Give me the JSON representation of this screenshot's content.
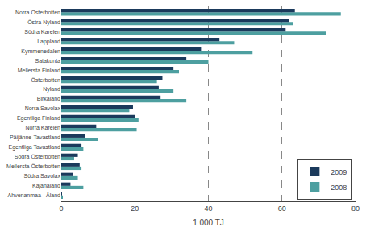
{
  "chart_data": {
    "type": "bar",
    "orientation": "horizontal",
    "categories": [
      "Ahvenanmaa - Åland",
      "Kajanaland",
      "Södra Savolax",
      "Mellersta Österbotten",
      "Södra Österbotten",
      "Egentliga Tavastland",
      "Päijänne-Tavastland",
      "Norra Karelen",
      "Egentliga Finland",
      "Norra Savolax",
      "Birkaland",
      "Nyland",
      "Österbotten",
      "Mellersta Finland",
      "Satakunta",
      "Kymmenedalen",
      "Lappland",
      "Södra Karelen",
      "Östra Nyland",
      "Norra Österbotten"
    ],
    "series": [
      {
        "name": "2009",
        "color": "#1b3a5c",
        "values": [
          0.2,
          2.5,
          3.2,
          5.0,
          4.5,
          5.5,
          6.5,
          9.5,
          20.0,
          19.5,
          27.0,
          26.5,
          27.5,
          30.5,
          34.0,
          38.0,
          43.0,
          61.0,
          62.0,
          63.5
        ]
      },
      {
        "name": "2008",
        "color": "#4d9fa0",
        "values": [
          0.4,
          6.0,
          4.5,
          5.5,
          3.5,
          6.0,
          10.0,
          20.5,
          21.0,
          18.5,
          34.0,
          30.5,
          26.0,
          32.0,
          40.0,
          52.0,
          47.0,
          72.0,
          63.0,
          76.0
        ]
      }
    ],
    "xlabel": "1 000 TJ",
    "xlim": [
      0,
      80
    ],
    "xticks": [
      0,
      20,
      40,
      60,
      80
    ],
    "grid": true,
    "legend": "lower right"
  }
}
